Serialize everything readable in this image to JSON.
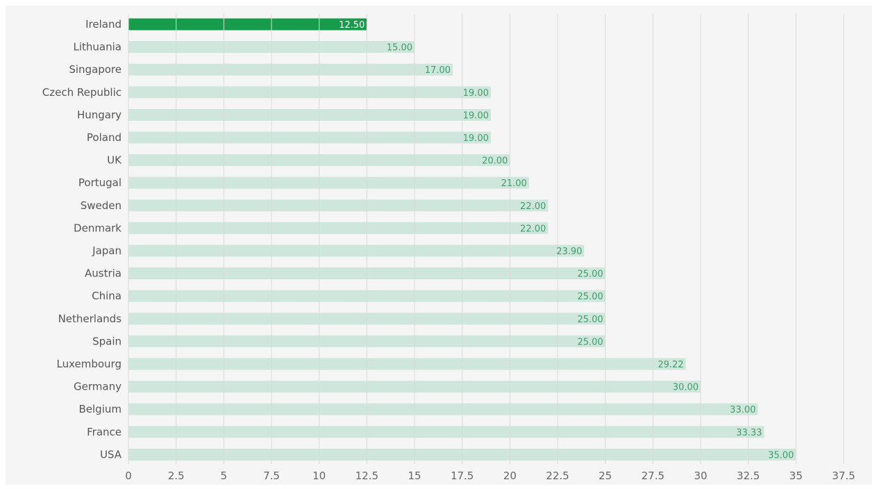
{
  "chart_data": {
    "type": "bar",
    "orientation": "horizontal",
    "categories": [
      "Ireland",
      "Lithuania",
      "Singapore",
      "Czech Republic",
      "Hungary",
      "Poland",
      "UK",
      "Portugal",
      "Sweden",
      "Denmark",
      "Japan",
      "Austria",
      "China",
      "Netherlands",
      "Spain",
      "Luxembourg",
      "Germany",
      "Belgium",
      "France",
      "USA"
    ],
    "values": [
      12.5,
      15,
      17,
      19,
      19,
      19,
      20,
      21,
      22,
      22,
      23.9,
      25,
      25,
      25,
      25,
      29.22,
      30,
      33,
      33.33,
      35
    ],
    "value_labels": [
      "12.50",
      "15.00",
      "17.00",
      "19.00",
      "19.00",
      "19.00",
      "20.00",
      "21.00",
      "22.00",
      "22.00",
      "23.90",
      "25.00",
      "25.00",
      "25.00",
      "25.00",
      "29.22",
      "30.00",
      "33.00",
      "33.33",
      "35.00"
    ],
    "highlighted_category": "Ireland",
    "xlim": [
      0,
      37.5
    ],
    "x_ticks": [
      0,
      2.5,
      5,
      7.5,
      10,
      12.5,
      15,
      17.5,
      20,
      22.5,
      25,
      27.5,
      30,
      32.5,
      35,
      37.5
    ],
    "x_tick_labels": [
      "0",
      "2.5",
      "5",
      "7.5",
      "10",
      "12.5",
      "15",
      "17.5",
      "20",
      "22.5",
      "25",
      "27.5",
      "30",
      "32.5",
      "35",
      "37.5"
    ],
    "grid": true,
    "title": "",
    "xlabel": "",
    "ylabel": ""
  },
  "colors": {
    "highlight_bar": "#179c4c",
    "bar": "#cfe6dc",
    "highlight_label": "#ffffff",
    "label": "#3f9e6a",
    "grid": "#dadada",
    "background": "#f5f5f5"
  }
}
